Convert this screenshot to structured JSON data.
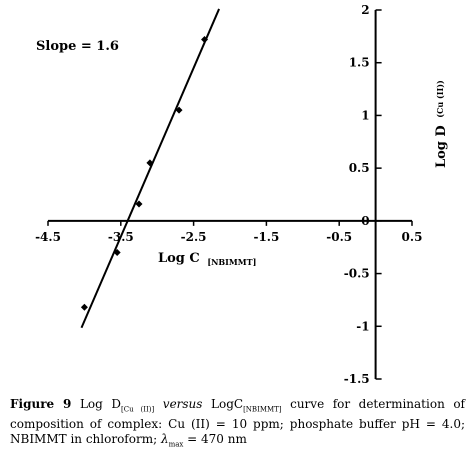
{
  "chart_data": {
    "type": "scatter",
    "x": [
      -4.0,
      -3.55,
      -3.25,
      -3.1,
      -2.7,
      -2.35
    ],
    "y": [
      -0.82,
      -0.3,
      0.16,
      0.55,
      1.05,
      1.72
    ],
    "fit_line": {
      "slope": 1.6,
      "intercept": 5.45
    },
    "xlim": [
      -4.5,
      0.5
    ],
    "ylim": [
      -1.5,
      2
    ],
    "x_ticks": [
      "-4.5",
      "-3.5",
      "-2.5",
      "-1.5",
      "-0.5",
      "0.5"
    ],
    "x_tick_values": [
      -4.5,
      -3.5,
      -2.5,
      -1.5,
      -0.5,
      0.5
    ],
    "y_ticks": [
      "-1.5",
      "-1",
      "-0.5",
      "0",
      "0.5",
      "1",
      "1.5",
      "2"
    ],
    "y_tick_values": [
      -1.5,
      -1,
      -0.5,
      0,
      0.5,
      1,
      1.5,
      2
    ],
    "xlabel": "Log C",
    "xlabel_sub": "[NBIMMT]",
    "ylabel": "Log D",
    "ylabel_sub": "(Cu (II))",
    "annotation": "Slope = 1.6",
    "grid": false,
    "marker_color": "#000000",
    "line_color": "#000000"
  },
  "caption": {
    "fig_label": "Figure 9",
    "part1": " Log D",
    "sub1": "[Cu (II)]",
    "versus": " versus ",
    "part2": "LogC",
    "sub2": "[NBIMMT]",
    "part3": " curve for determination of composition of complex: Cu (II) = 10 ppm; phosphate buffer pH = 4.0; NBIMMT in chloroform; ",
    "lambda": "λ",
    "lambda_sub": "max",
    "part4": " = 470 nm"
  }
}
